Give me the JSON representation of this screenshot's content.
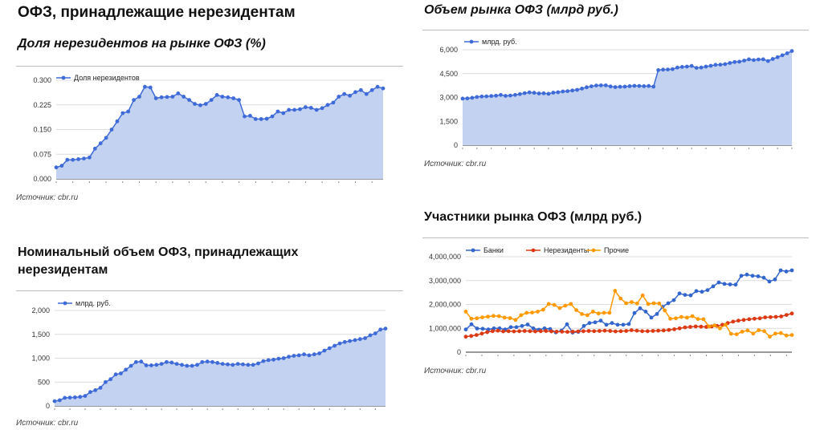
{
  "page": {
    "title": "ОФЗ, принадлежащие нерезидентам"
  },
  "chart_data": [
    {
      "id": "nonres-share",
      "type": "area",
      "title": "Доля нерезидентов на рынке ОФЗ (%)",
      "source": "Источник: cbr.ru",
      "yticks": [
        "0.000",
        "0.075",
        "0.150",
        "0.225",
        "0.300"
      ],
      "ylim": [
        0,
        0.3
      ],
      "grid": true,
      "legend_position": "top-left",
      "color": "#3f6bd8",
      "series": [
        {
          "name": "Доля нерезидентов",
          "values": [
            0.035,
            0.04,
            0.058,
            0.058,
            0.06,
            0.062,
            0.065,
            0.092,
            0.108,
            0.125,
            0.15,
            0.175,
            0.2,
            0.205,
            0.24,
            0.25,
            0.28,
            0.278,
            0.245,
            0.248,
            0.249,
            0.25,
            0.26,
            0.25,
            0.24,
            0.228,
            0.224,
            0.228,
            0.24,
            0.255,
            0.25,
            0.248,
            0.245,
            0.24,
            0.19,
            0.192,
            0.182,
            0.182,
            0.183,
            0.19,
            0.205,
            0.2,
            0.21,
            0.21,
            0.212,
            0.218,
            0.216,
            0.21,
            0.215,
            0.225,
            0.232,
            0.25,
            0.258,
            0.253,
            0.264,
            0.27,
            0.258,
            0.27,
            0.28,
            0.275
          ]
        }
      ]
    },
    {
      "id": "ofz-market",
      "type": "area",
      "title": "Объем рынка ОФЗ (млрд руб.)",
      "source": "Источник: cbr.ru",
      "yticks": [
        "0",
        "1,500",
        "3,000",
        "4,500",
        "6,000"
      ],
      "ylim": [
        0,
        6000
      ],
      "grid": true,
      "legend_position": "top-left",
      "color": "#3f6bd8",
      "series": [
        {
          "name": "млрд. руб.",
          "values": [
            2930,
            2940,
            2980,
            3030,
            3060,
            3070,
            3090,
            3110,
            3160,
            3100,
            3120,
            3160,
            3210,
            3270,
            3320,
            3290,
            3250,
            3260,
            3230,
            3300,
            3330,
            3380,
            3400,
            3440,
            3480,
            3560,
            3640,
            3700,
            3750,
            3760,
            3760,
            3690,
            3650,
            3670,
            3680,
            3710,
            3730,
            3720,
            3710,
            3720,
            3680,
            4720,
            4750,
            4760,
            4780,
            4880,
            4920,
            4940,
            4980,
            4860,
            4880,
            4940,
            4990,
            5050,
            5060,
            5100,
            5170,
            5230,
            5250,
            5320,
            5400,
            5350,
            5390,
            5400,
            5290,
            5420,
            5530,
            5650,
            5780,
            5920
          ]
        }
      ]
    },
    {
      "id": "nominal-nonres",
      "type": "area",
      "title": "Номинальный объем ОФЗ, принадлежащих нерезидентам",
      "source": "Источник: cbr.ru",
      "yticks": [
        "0",
        "500",
        "1,000",
        "1,500",
        "2,000"
      ],
      "ylim": [
        0,
        2000
      ],
      "grid": true,
      "legend_position": "top-left",
      "color": "#3f6bd8",
      "series": [
        {
          "name": "млрд. руб.",
          "values": [
            100,
            120,
            170,
            175,
            180,
            190,
            210,
            290,
            330,
            380,
            500,
            560,
            660,
            680,
            760,
            840,
            920,
            930,
            850,
            850,
            860,
            880,
            920,
            910,
            880,
            860,
            840,
            840,
            860,
            920,
            930,
            920,
            900,
            880,
            870,
            860,
            880,
            870,
            860,
            860,
            890,
            940,
            960,
            970,
            990,
            1000,
            1030,
            1050,
            1060,
            1080,
            1060,
            1080,
            1100,
            1160,
            1210,
            1260,
            1310,
            1340,
            1360,
            1380,
            1400,
            1420,
            1480,
            1520,
            1600,
            1620
          ]
        }
      ]
    },
    {
      "id": "participants",
      "type": "line",
      "title": "Участники рынка ОФЗ (млрд руб.)",
      "source": "Источник: cbr.ru",
      "yticks": [
        "0",
        "1,000,000",
        "2,000,000",
        "3,000,000",
        "4,000,000"
      ],
      "ylim": [
        0,
        4000000
      ],
      "grid": true,
      "legend_position": "top-left",
      "series": [
        {
          "name": "Банки",
          "color": "#3366cc",
          "values": [
            950000,
            1170000,
            990000,
            980000,
            950000,
            1000000,
            1000000,
            950000,
            1050000,
            1050000,
            1100000,
            1160000,
            1000000,
            940000,
            1000000,
            970000,
            830000,
            900000,
            1170000,
            820000,
            850000,
            1100000,
            1220000,
            1250000,
            1320000,
            1150000,
            1220000,
            1150000,
            1150000,
            1180000,
            1640000,
            1840000,
            1700000,
            1450000,
            1600000,
            1900000,
            2050000,
            2180000,
            2460000,
            2400000,
            2380000,
            2560000,
            2530000,
            2600000,
            2760000,
            2920000,
            2860000,
            2840000,
            2830000,
            3200000,
            3250000,
            3200000,
            3180000,
            3120000,
            2960000,
            3050000,
            3430000,
            3380000,
            3430000
          ]
        },
        {
          "name": "Нерезиденты",
          "color": "#dc3912",
          "values": [
            650000,
            680000,
            720000,
            780000,
            840000,
            880000,
            900000,
            870000,
            880000,
            870000,
            880000,
            890000,
            880000,
            870000,
            880000,
            890000,
            870000,
            860000,
            860000,
            850000,
            860000,
            870000,
            880000,
            890000,
            880000,
            890000,
            900000,
            890000,
            870000,
            880000,
            890000,
            920000,
            900000,
            880000,
            880000,
            890000,
            900000,
            910000,
            930000,
            960000,
            1000000,
            1040000,
            1060000,
            1080000,
            1070000,
            1060000,
            1080000,
            1100000,
            1150000,
            1220000,
            1280000,
            1320000,
            1350000,
            1380000,
            1400000,
            1420000,
            1460000,
            1470000,
            1480000,
            1500000,
            1560000,
            1620000
          ]
        },
        {
          "name": "Прочие",
          "color": "#ff9900",
          "values": [
            1700000,
            1400000,
            1420000,
            1460000,
            1490000,
            1520000,
            1510000,
            1450000,
            1430000,
            1350000,
            1550000,
            1650000,
            1660000,
            1700000,
            1780000,
            2020000,
            1980000,
            1850000,
            1950000,
            2020000,
            1760000,
            1600000,
            1550000,
            1700000,
            1620000,
            1650000,
            1650000,
            2570000,
            2250000,
            2050000,
            2100000,
            2040000,
            2380000,
            2020000,
            2050000,
            2040000,
            1750000,
            1400000,
            1420000,
            1480000,
            1450000,
            1510000,
            1390000,
            1380000,
            1080000,
            1120000,
            1000000,
            1150000,
            770000,
            750000,
            860000,
            910000,
            780000,
            920000,
            880000,
            650000,
            780000,
            800000,
            700000,
            720000
          ]
        }
      ]
    }
  ]
}
